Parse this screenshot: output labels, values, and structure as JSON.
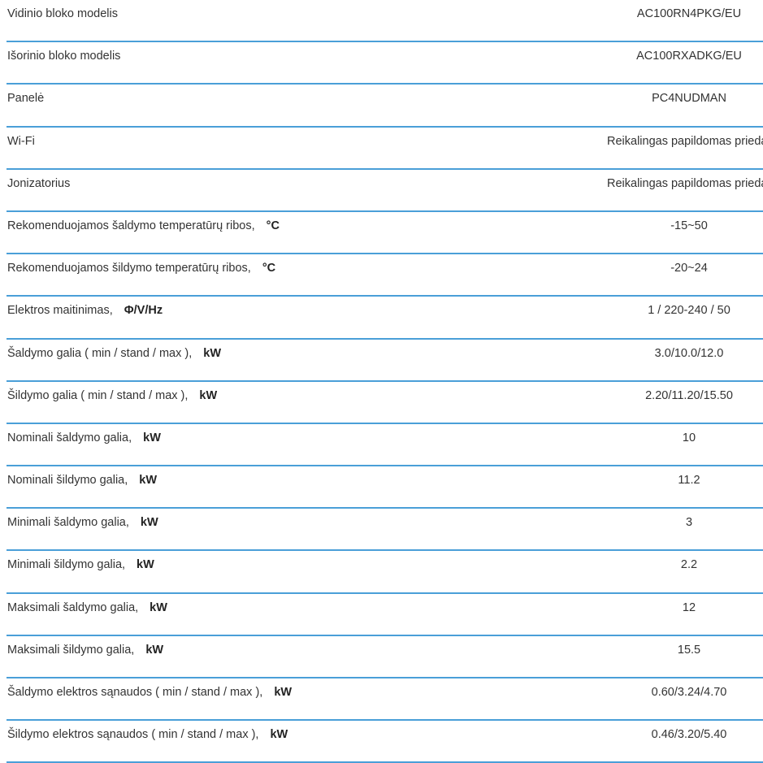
{
  "colors": {
    "divider": "#4a9fd8",
    "text": "#333333"
  },
  "specs": [
    {
      "label": "Vidinio bloko modelis",
      "unit": "",
      "value": "AC100RN4PKG/EU"
    },
    {
      "label": "Išorinio bloko modelis",
      "unit": "",
      "value": "AC100RXADKG/EU"
    },
    {
      "label": "Panelė",
      "unit": "",
      "value": "PC4NUDMAN"
    },
    {
      "label": "Wi-Fi",
      "unit": "",
      "value": "Reikalingas papildomas priedas"
    },
    {
      "label": "Jonizatorius",
      "unit": "",
      "value": "Reikalingas papildomas priedas"
    },
    {
      "label": "Rekomenduojamos šaldymo temperatūrų ribos,",
      "unit": "°C",
      "value": "-15~50"
    },
    {
      "label": "Rekomenduojamos šildymo temperatūrų ribos,",
      "unit": "°C",
      "value": "-20~24"
    },
    {
      "label": "Elektros maitinimas,",
      "unit": "Φ/V/Hz",
      "value": "1 / 220-240 / 50"
    },
    {
      "label": "Šaldymo galia ( min / stand / max ),",
      "unit": "kW",
      "value": "3.0/10.0/12.0"
    },
    {
      "label": "Šildymo galia ( min / stand / max ),",
      "unit": "kW",
      "value": "2.20/11.20/15.50"
    },
    {
      "label": "Nominali šaldymo galia,",
      "unit": "kW",
      "value": "10"
    },
    {
      "label": "Nominali šildymo galia,",
      "unit": "kW",
      "value": "11.2"
    },
    {
      "label": "Minimali šaldymo galia,",
      "unit": "kW",
      "value": "3"
    },
    {
      "label": "Minimali šildymo galia,",
      "unit": "kW",
      "value": "2.2"
    },
    {
      "label": "Maksimali šaldymo galia,",
      "unit": "kW",
      "value": "12"
    },
    {
      "label": "Maksimali šildymo galia,",
      "unit": "kW",
      "value": "15.5"
    },
    {
      "label": "Šaldymo elektros sąnaudos ( min / stand / max ),",
      "unit": "kW",
      "value": "0.60/3.24/4.70"
    },
    {
      "label": "Šildymo elektros sąnaudos ( min / stand / max ),",
      "unit": "kW",
      "value": "0.46/3.20/5.40"
    }
  ]
}
